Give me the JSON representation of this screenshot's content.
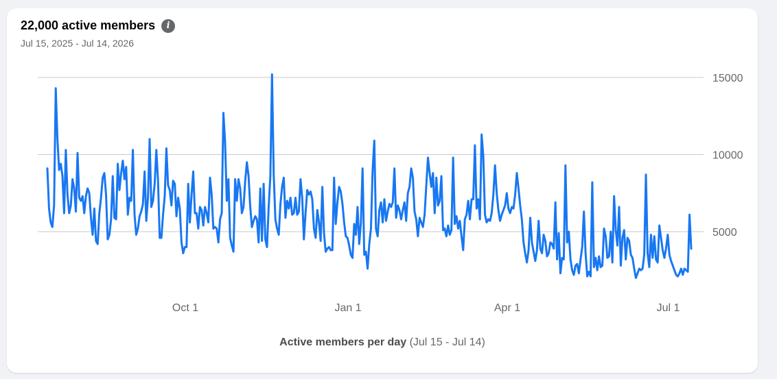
{
  "header": {
    "title": "22,000 active members",
    "date_range": "Jul 15, 2025 - Jul 14, 2026",
    "info_icon": "info-icon"
  },
  "caption": {
    "label": "Active members per day",
    "range": "(Jul 15 - Jul 14)"
  },
  "colors": {
    "line": "#1877f2",
    "grid": "#c8cacd",
    "text": "#65676b"
  },
  "chart_data": {
    "type": "line",
    "title": "22,000 active members",
    "subtitle": "Jul 15, 2025 - Jul 14, 2026",
    "xlabel": "Active members per day (Jul 15 - Jul 14)",
    "ylabel": "",
    "x_start": "2025-07-15",
    "x_end": "2026-07-14",
    "x_ticks": [
      {
        "label": "Oct 1",
        "date": "2025-10-01"
      },
      {
        "label": "Jan 1",
        "date": "2026-01-01"
      },
      {
        "label": "Apr 1",
        "date": "2026-04-01"
      },
      {
        "label": "Jul 1",
        "date": "2026-07-01"
      }
    ],
    "y_ticks": [
      5000,
      10000,
      15000
    ],
    "ylim": [
      0,
      16000
    ],
    "grid": true,
    "series": [
      {
        "values": [
          9100,
          6500,
          5600,
          5300,
          6700,
          14300,
          11000,
          9000,
          9400,
          8600,
          6200,
          10300,
          7400,
          6200,
          6700,
          8400,
          7800,
          6300,
          10100,
          7200,
          7000,
          7300,
          6200,
          7300,
          7800,
          7500,
          5900,
          4800,
          6500,
          4400,
          4200,
          6200,
          7200,
          8500,
          8800,
          7400,
          4500,
          4800,
          5800,
          8600,
          5900,
          5800,
          9400,
          7700,
          8800,
          9600,
          8400,
          9200,
          6100,
          7200,
          7000,
          10300,
          6100,
          4800,
          5200,
          6000,
          6300,
          6800,
          8900,
          5700,
          7200,
          11000,
          6600,
          7000,
          8100,
          10300,
          8300,
          4600,
          4600,
          6100,
          7300,
          10400,
          8000,
          7700,
          6700,
          8300,
          8100,
          6000,
          7200,
          6500,
          4300,
          3600,
          4000,
          4000,
          8100,
          5600,
          7400,
          8900,
          6200,
          6200,
          5200,
          6600,
          6400,
          5400,
          6600,
          6200,
          5600,
          8500,
          7400,
          5200,
          5300,
          5200,
          4300,
          5800,
          6200,
          12700,
          10800,
          7000,
          8400,
          4600,
          4100,
          3700,
          8400,
          7000,
          8400,
          7800,
          6200,
          6600,
          8300,
          9500,
          8600,
          6600,
          5300,
          5700,
          6000,
          5800,
          4300,
          7800,
          4400,
          8100,
          4500,
          4000,
          6600,
          8600,
          15200,
          8700,
          5800,
          5200,
          4800,
          6800,
          7900,
          8500,
          5900,
          7000,
          6500,
          7200,
          6100,
          6200,
          7200,
          6100,
          6300,
          8400,
          7200,
          4500,
          6200,
          7700,
          7400,
          7600,
          7100,
          5200,
          4600,
          6400,
          5600,
          4400,
          7900,
          4900,
          3700,
          3900,
          4000,
          3800,
          3800,
          8500,
          5500,
          6900,
          7900,
          7600,
          6800,
          5600,
          4700,
          4600,
          4100,
          3500,
          3300,
          5500,
          4800,
          6600,
          4200,
          5600,
          9100,
          3500,
          3700,
          2600,
          4200,
          5200,
          9000,
          10900,
          5200,
          4700,
          6400,
          6900,
          5600,
          7100,
          5700,
          6300,
          6800,
          6600,
          6900,
          9100,
          5900,
          6700,
          6400,
          5800,
          6400,
          6900,
          5700,
          7500,
          7900,
          9100,
          8500,
          6300,
          5800,
          4700,
          5900,
          5600,
          5300,
          6100,
          8000,
          9800,
          8800,
          7900,
          8800,
          6200,
          8500,
          6700,
          7000,
          8600,
          5100,
          5200,
          4700,
          5400,
          4800,
          5100,
          9800,
          5500,
          6000,
          5200,
          5700,
          4700,
          3800,
          5800,
          6100,
          7000,
          5800,
          7100,
          7100,
          10600,
          6500,
          7100,
          5800,
          11300,
          9900,
          6100,
          5600,
          5800,
          5700,
          6200,
          7400,
          9300,
          7500,
          6400,
          5700,
          6100,
          6400,
          6700,
          7500,
          6500,
          6200,
          6600,
          6500,
          7400,
          8800,
          7800,
          6700,
          5800,
          4300,
          3600,
          3000,
          3800,
          5900,
          4300,
          3700,
          3100,
          3800,
          5700,
          3900,
          3600,
          4800,
          4400,
          3400,
          3600,
          4300,
          4200,
          3900,
          6900,
          3200,
          4900,
          2300,
          3300,
          3200,
          9300,
          4300,
          5000,
          3200,
          2500,
          2200,
          2800,
          2900,
          2300,
          3200,
          4000,
          6300,
          3600,
          2100,
          2400,
          2100,
          8200,
          2700,
          3300,
          2500,
          3400,
          2700,
          2800,
          5200,
          4700,
          3300,
          3400,
          5000,
          3000,
          7300,
          5100,
          4100,
          6600,
          2800,
          4600,
          5100,
          3200,
          4600,
          4400,
          3500,
          3300,
          2600,
          2000,
          2300,
          2600,
          2500,
          2600,
          3500,
          8700,
          3600,
          2700,
          4800,
          3300,
          4700,
          3200,
          3000,
          5400,
          4600,
          3800,
          3300,
          3900,
          4800,
          3500,
          3100,
          2800,
          2500,
          2200,
          2100,
          2300,
          2600,
          2200,
          2600,
          2500,
          2400,
          6100,
          3900
        ]
      }
    ]
  }
}
